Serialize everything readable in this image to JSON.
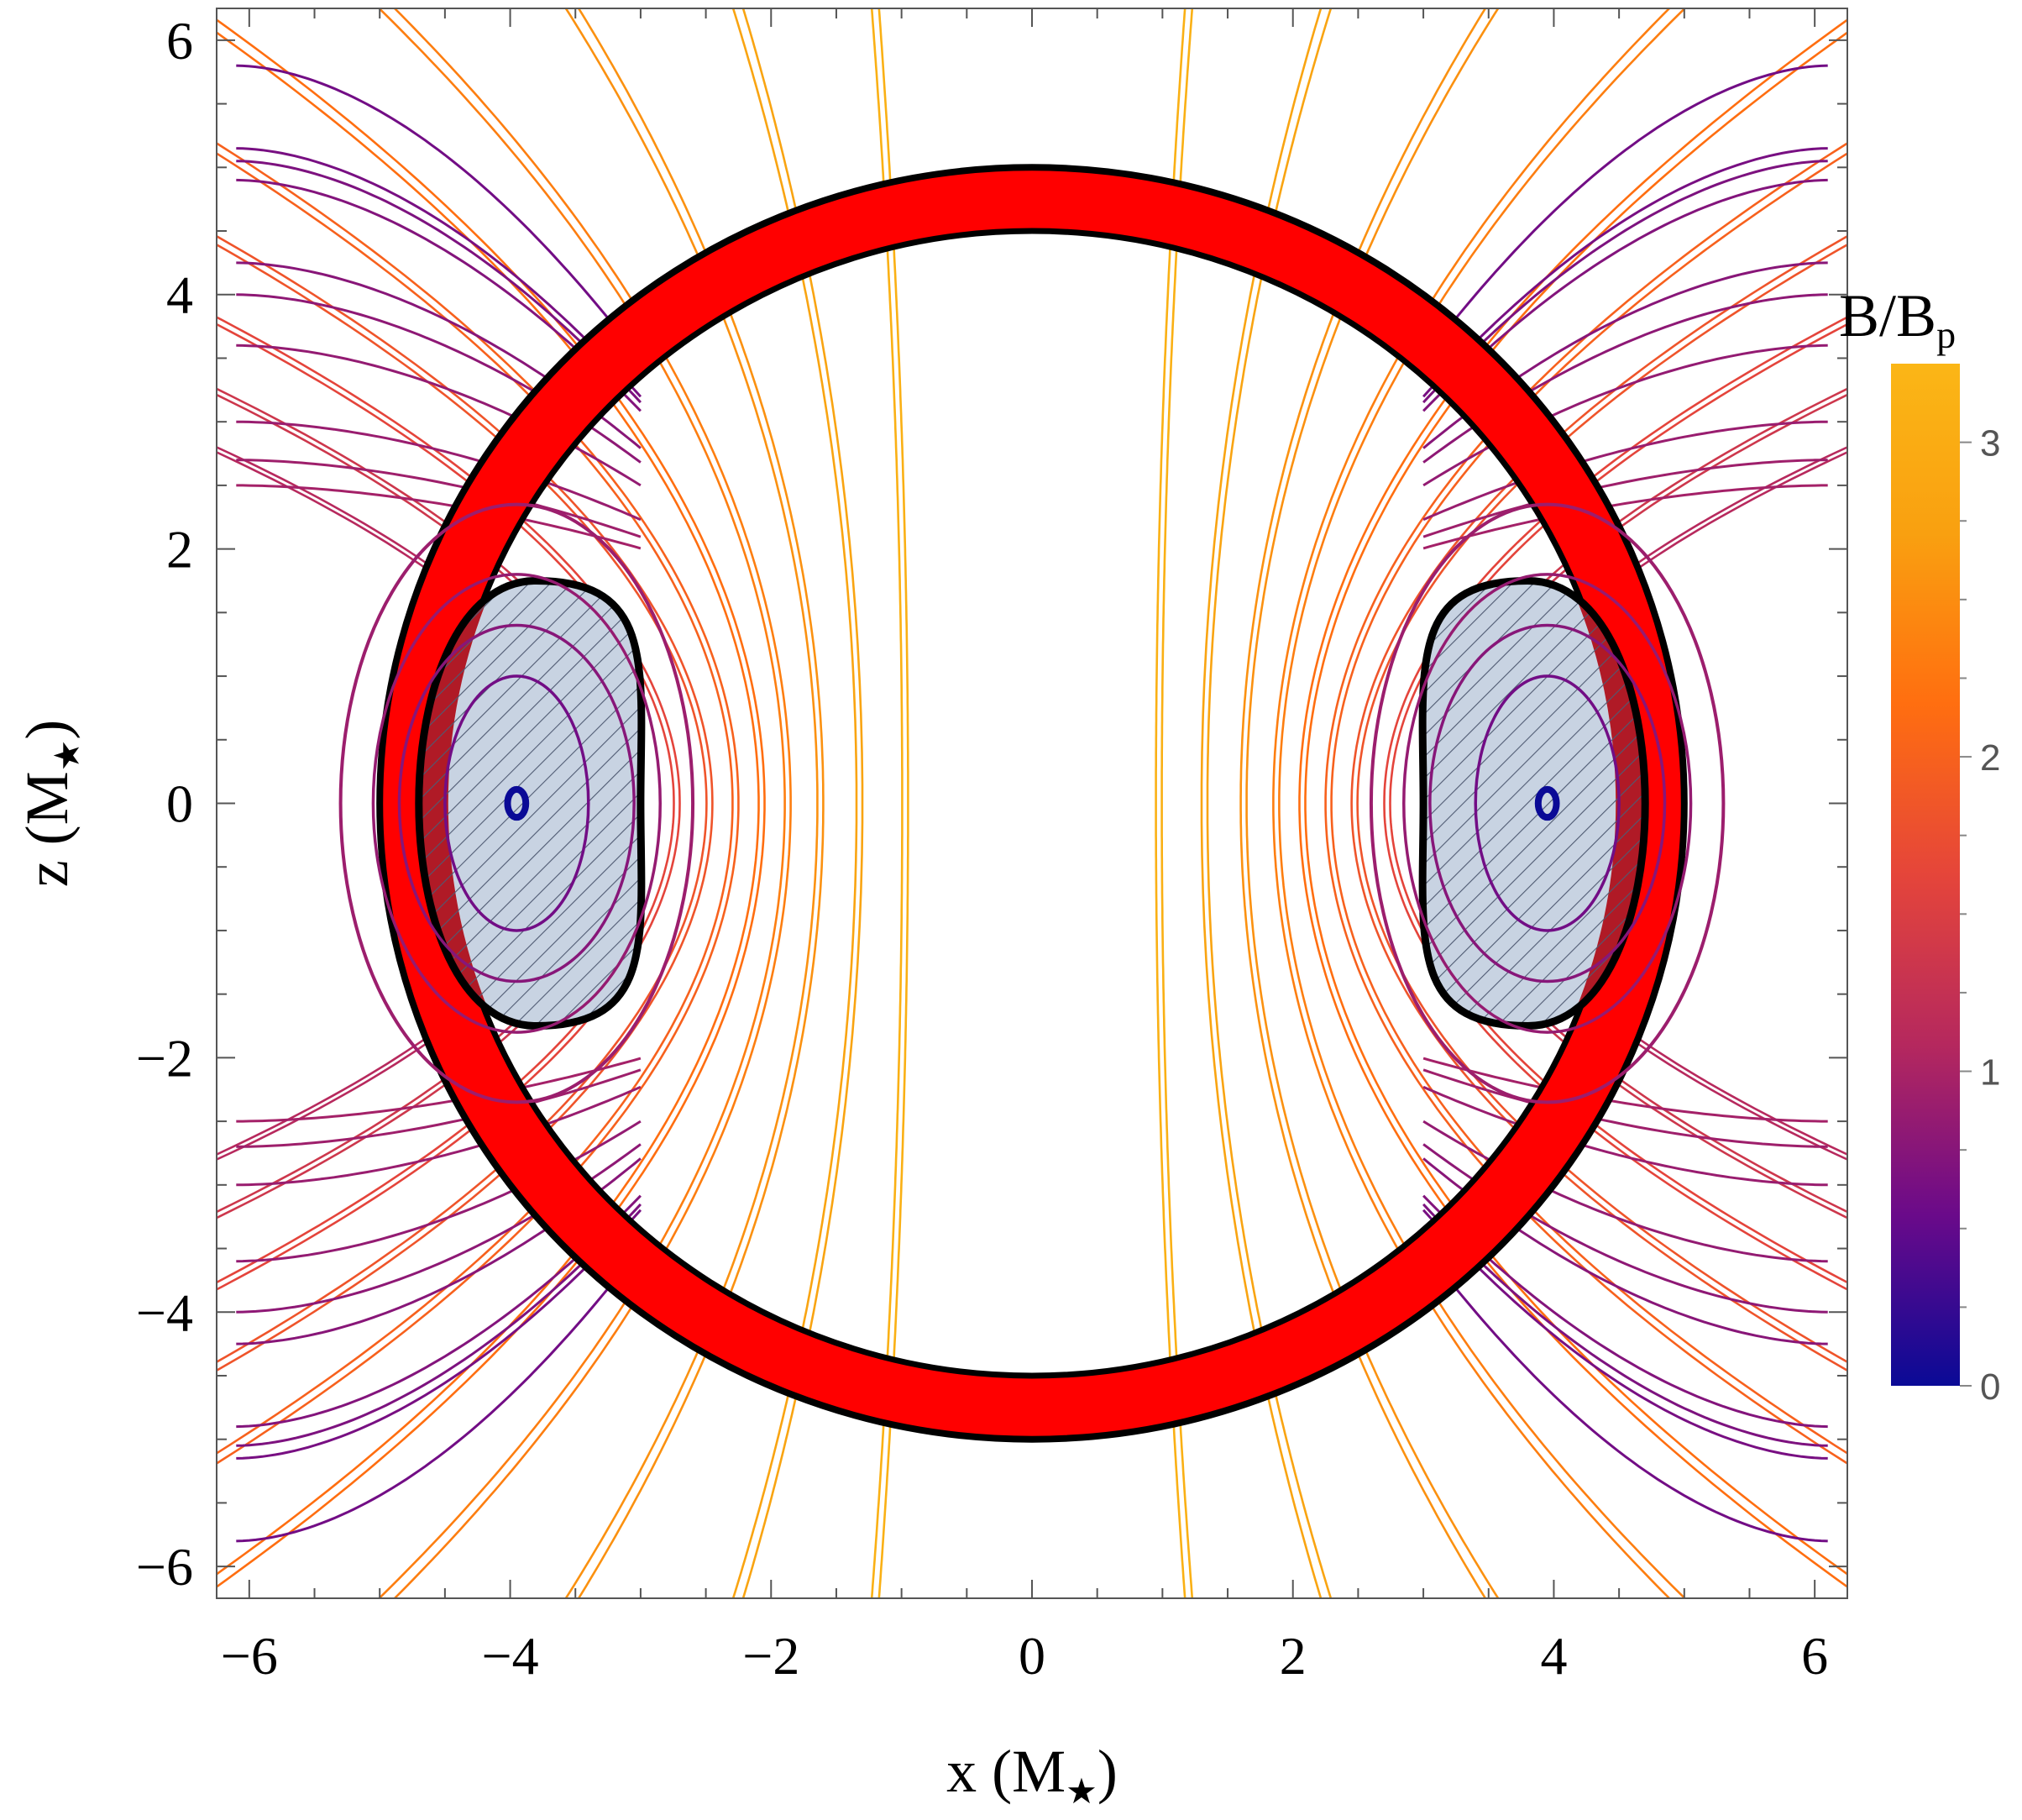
{
  "chart_data": {
    "type": "line",
    "title": "",
    "xlabel": "x (M",
    "xlabel_sub": "★",
    "xlabel_close": ")",
    "ylabel": "z (M",
    "ylabel_sub": "★",
    "ylabel_close": ")",
    "xlim": [
      -6.25,
      6.25
    ],
    "ylim": [
      -6.25,
      6.25
    ],
    "x_ticks": [
      -6,
      -4,
      -2,
      0,
      2,
      4,
      6
    ],
    "y_ticks": [
      -6,
      -4,
      -2,
      0,
      2,
      4,
      6
    ],
    "x_tick_labels": [
      "−6",
      "−4",
      "−2",
      "0",
      "2",
      "4",
      "6"
    ],
    "y_tick_labels": [
      "−6",
      "−4",
      "−2",
      "0",
      "2",
      "4",
      "6"
    ],
    "grid": false,
    "shell": {
      "outer_radius": 5.0,
      "inner_radius": 4.5,
      "color": "#ff0000"
    },
    "hatched_regions": [
      {
        "center_x": -3.95,
        "x_inner": -3.0,
        "x_outer": -5.0,
        "z_half_height": 1.75,
        "fill": "#c8d3e2"
      },
      {
        "center_x": 3.95,
        "x_inner": 3.0,
        "x_outer": 5.0,
        "z_half_height": 1.75,
        "fill": "#c8d3e2"
      }
    ],
    "field_line_apexes": [
      0.95,
      1.3,
      1.6,
      1.85,
      2.05,
      2.25,
      2.45,
      2.7,
      3.0,
      3.3
    ],
    "field_lines": "dipole-like field lines colored by B/B_p",
    "colorbar": {
      "label": "B/B",
      "label_sub": "p",
      "min": 0,
      "max": 3.25,
      "ticks": [
        0,
        1,
        2,
        3
      ],
      "tick_labels": [
        "0",
        "1",
        "2",
        "3"
      ],
      "colors": [
        "#0a0a96",
        "#6a0a8a",
        "#b5285e",
        "#e5453a",
        "#ff6e10",
        "#f9a010",
        "#fbb616"
      ]
    }
  }
}
